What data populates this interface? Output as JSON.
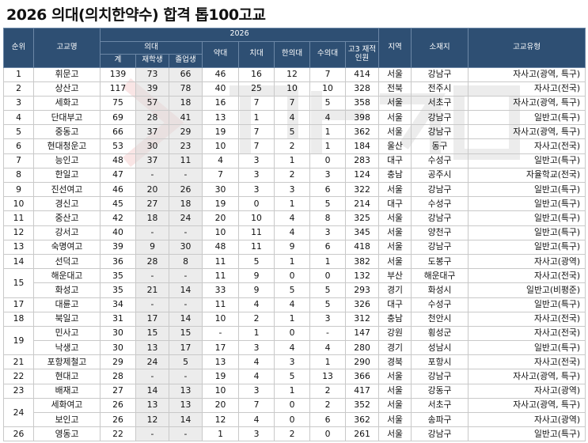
{
  "title": "2026 의대(의치한약수) 합격 톱100고교",
  "header": {
    "year": "2026",
    "rank": "순위",
    "school": "고교명",
    "medical": "의대",
    "total": "계",
    "current": "재학생",
    "graduate": "졸업생",
    "pharmacy": "약대",
    "dental": "치대",
    "oriental": "한의대",
    "vet": "수의대",
    "students": "고3 재적인원",
    "region": "지역",
    "location": "소재지",
    "type": "고교유형"
  },
  "rows": [
    {
      "rank": "1",
      "name": "휘문고",
      "total": "139",
      "current": "73",
      "graduate": "66",
      "pharmacy": "46",
      "dental": "16",
      "oriental": "12",
      "vet": "7",
      "students": "414",
      "region": "서울",
      "location": "강남구",
      "type": "자사고(광역, 특구)"
    },
    {
      "rank": "2",
      "name": "상산고",
      "total": "117",
      "current": "39",
      "graduate": "78",
      "pharmacy": "40",
      "dental": "25",
      "oriental": "10",
      "vet": "10",
      "students": "328",
      "region": "전북",
      "location": "전주시",
      "type": "자사고(전국)"
    },
    {
      "rank": "3",
      "name": "세화고",
      "total": "75",
      "current": "57",
      "graduate": "18",
      "pharmacy": "16",
      "dental": "7",
      "oriental": "7",
      "vet": "5",
      "students": "358",
      "region": "서울",
      "location": "서초구",
      "type": "자사고(광역, 특구)"
    },
    {
      "rank": "4",
      "name": "단대부고",
      "total": "69",
      "current": "28",
      "graduate": "41",
      "pharmacy": "13",
      "dental": "1",
      "oriental": "4",
      "vet": "4",
      "students": "398",
      "region": "서울",
      "location": "강남구",
      "type": "일반고(특구)"
    },
    {
      "rank": "5",
      "name": "중동고",
      "total": "66",
      "current": "37",
      "graduate": "29",
      "pharmacy": "19",
      "dental": "7",
      "oriental": "5",
      "vet": "1",
      "students": "362",
      "region": "서울",
      "location": "강남구",
      "type": "자사고(광역, 특구)"
    },
    {
      "rank": "6",
      "name": "현대청운고",
      "total": "53",
      "current": "30",
      "graduate": "23",
      "pharmacy": "10",
      "dental": "7",
      "oriental": "2",
      "vet": "1",
      "students": "184",
      "region": "울산",
      "location": "동구",
      "type": "자사고(전국)"
    },
    {
      "rank": "7",
      "name": "능인고",
      "total": "48",
      "current": "37",
      "graduate": "11",
      "pharmacy": "4",
      "dental": "3",
      "oriental": "1",
      "vet": "0",
      "students": "283",
      "region": "대구",
      "location": "수성구",
      "type": "일반고(특구)"
    },
    {
      "rank": "8",
      "name": "한일고",
      "total": "47",
      "current": "-",
      "graduate": "-",
      "pharmacy": "7",
      "dental": "3",
      "oriental": "2",
      "vet": "3",
      "students": "124",
      "region": "충남",
      "location": "공주시",
      "type": "자율학교(전국)"
    },
    {
      "rank": "9",
      "name": "진선여고",
      "total": "46",
      "current": "20",
      "graduate": "26",
      "pharmacy": "30",
      "dental": "3",
      "oriental": "3",
      "vet": "6",
      "students": "322",
      "region": "서울",
      "location": "강남구",
      "type": "일반고(특구)"
    },
    {
      "rank": "10",
      "name": "경신고",
      "total": "45",
      "current": "27",
      "graduate": "18",
      "pharmacy": "19",
      "dental": "0",
      "oriental": "1",
      "vet": "5",
      "students": "214",
      "region": "대구",
      "location": "수성구",
      "type": "일반고(특구)"
    },
    {
      "rank": "11",
      "name": "중산고",
      "total": "42",
      "current": "18",
      "graduate": "24",
      "pharmacy": "20",
      "dental": "10",
      "oriental": "4",
      "vet": "8",
      "students": "325",
      "region": "서울",
      "location": "강남구",
      "type": "일반고(특구)"
    },
    {
      "rank": "12",
      "name": "강서고",
      "total": "40",
      "current": "-",
      "graduate": "-",
      "pharmacy": "10",
      "dental": "11",
      "oriental": "4",
      "vet": "3",
      "students": "345",
      "region": "서울",
      "location": "양천구",
      "type": "일반고(특구)"
    },
    {
      "rank": "13",
      "name": "숙명여고",
      "total": "39",
      "current": "9",
      "graduate": "30",
      "pharmacy": "48",
      "dental": "11",
      "oriental": "9",
      "vet": "6",
      "students": "418",
      "region": "서울",
      "location": "강남구",
      "type": "일반고(특구)"
    },
    {
      "rank": "14",
      "name": "선덕고",
      "total": "36",
      "current": "28",
      "graduate": "8",
      "pharmacy": "11",
      "dental": "5",
      "oriental": "1",
      "vet": "1",
      "students": "382",
      "region": "서울",
      "location": "도봉구",
      "type": "자사고(광역)"
    },
    {
      "rank": "15",
      "name": "해운대고",
      "total": "35",
      "current": "-",
      "graduate": "-",
      "pharmacy": "11",
      "dental": "9",
      "oriental": "0",
      "vet": "0",
      "students": "132",
      "region": "부산",
      "location": "해운대구",
      "type": "자사고(전국)"
    },
    {
      "rank": "",
      "name": "화성고",
      "total": "35",
      "current": "21",
      "graduate": "14",
      "pharmacy": "33",
      "dental": "9",
      "oriental": "5",
      "vet": "5",
      "students": "293",
      "region": "경기",
      "location": "화성시",
      "type": "일반고(비평준)"
    },
    {
      "rank": "17",
      "name": "대륜고",
      "total": "34",
      "current": "-",
      "graduate": "-",
      "pharmacy": "11",
      "dental": "4",
      "oriental": "4",
      "vet": "5",
      "students": "326",
      "region": "대구",
      "location": "수성구",
      "type": "일반고(특구)"
    },
    {
      "rank": "18",
      "name": "북일고",
      "total": "31",
      "current": "17",
      "graduate": "14",
      "pharmacy": "10",
      "dental": "2",
      "oriental": "1",
      "vet": "3",
      "students": "312",
      "region": "충남",
      "location": "천안시",
      "type": "자사고(전국)"
    },
    {
      "rank": "19",
      "name": "민사고",
      "total": "30",
      "current": "15",
      "graduate": "15",
      "pharmacy": "-",
      "dental": "1",
      "oriental": "0",
      "vet": "-",
      "students": "147",
      "region": "강원",
      "location": "횡성군",
      "type": "자사고(전국)"
    },
    {
      "rank": "",
      "name": "낙생고",
      "total": "30",
      "current": "13",
      "graduate": "17",
      "pharmacy": "17",
      "dental": "3",
      "oriental": "4",
      "vet": "4",
      "students": "280",
      "region": "경기",
      "location": "성남시",
      "type": "일반고(특구)"
    },
    {
      "rank": "21",
      "name": "포항제철고",
      "total": "29",
      "current": "24",
      "graduate": "5",
      "pharmacy": "13",
      "dental": "4",
      "oriental": "3",
      "vet": "1",
      "students": "290",
      "region": "경북",
      "location": "포항시",
      "type": "자사고(전국)"
    },
    {
      "rank": "22",
      "name": "현대고",
      "total": "28",
      "current": "-",
      "graduate": "-",
      "pharmacy": "19",
      "dental": "4",
      "oriental": "5",
      "vet": "13",
      "students": "366",
      "region": "서울",
      "location": "강남구",
      "type": "자사고(광역, 특구)"
    },
    {
      "rank": "23",
      "name": "배재고",
      "total": "27",
      "current": "14",
      "graduate": "13",
      "pharmacy": "10",
      "dental": "3",
      "oriental": "1",
      "vet": "2",
      "students": "417",
      "region": "서울",
      "location": "강동구",
      "type": "자사고(광역)"
    },
    {
      "rank": "24",
      "name": "세화여고",
      "total": "26",
      "current": "13",
      "graduate": "13",
      "pharmacy": "20",
      "dental": "7",
      "oriental": "0",
      "vet": "2",
      "students": "352",
      "region": "서울",
      "location": "서초구",
      "type": "자사고(광역, 특구)"
    },
    {
      "rank": "",
      "name": "보인고",
      "total": "26",
      "current": "12",
      "graduate": "14",
      "pharmacy": "12",
      "dental": "4",
      "oriental": "0",
      "vet": "6",
      "students": "362",
      "region": "서울",
      "location": "송파구",
      "type": "자사고(광역)"
    },
    {
      "rank": "26",
      "name": "영동고",
      "total": "22",
      "current": "-",
      "graduate": "-",
      "pharmacy": "1",
      "dental": "3",
      "oriental": "2",
      "vet": "0",
      "students": "261",
      "region": "서울",
      "location": "강남구",
      "type": "일반고(특구)"
    }
  ],
  "rank_spans": {
    "15": 2,
    "19": 2,
    "24": 2
  }
}
